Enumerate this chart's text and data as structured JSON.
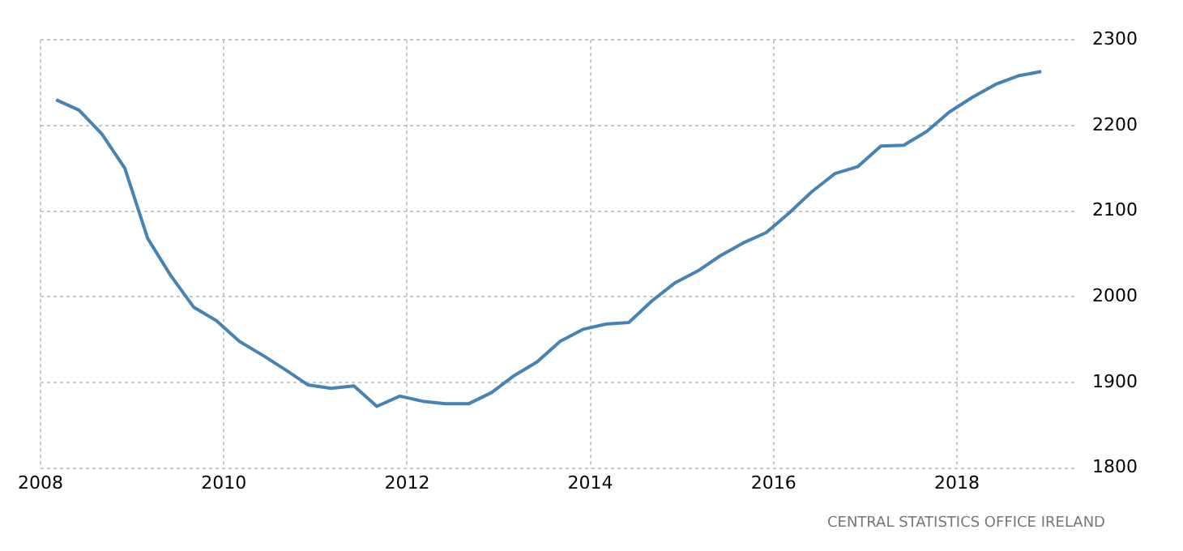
{
  "chart_data": {
    "type": "line",
    "x": [
      2008.17,
      2008.42,
      2008.67,
      2008.92,
      2009.17,
      2009.42,
      2009.67,
      2009.92,
      2010.17,
      2010.42,
      2010.67,
      2010.92,
      2011.17,
      2011.42,
      2011.67,
      2011.92,
      2012.17,
      2012.42,
      2012.67,
      2012.92,
      2013.17,
      2013.42,
      2013.67,
      2013.92,
      2014.17,
      2014.42,
      2014.67,
      2014.92,
      2015.17,
      2015.42,
      2015.67,
      2015.92,
      2016.17,
      2016.42,
      2016.67,
      2016.92,
      2017.17,
      2017.42,
      2017.67,
      2017.92,
      2018.17,
      2018.42,
      2018.67,
      2018.92
    ],
    "series": [
      {
        "color": "#4682b4",
        "values": [
          2230,
          2218,
          2190,
          2150,
          2068,
          2025,
          1988,
          1972,
          1948,
          1932,
          1915,
          1897,
          1893,
          1896,
          1872,
          1884,
          1878,
          1875,
          1875,
          1888,
          1908,
          1924,
          1948,
          1962,
          1968,
          1970,
          1995,
          2016,
          2030,
          2048,
          2063,
          2075,
          2098,
          2123,
          2144,
          2152,
          2176,
          2177,
          2193,
          2216,
          2233,
          2248,
          2258,
          2263
        ]
      }
    ],
    "xlim": [
      2008,
      2019.3
    ],
    "xticks": [
      2008,
      2010,
      2012,
      2014,
      2016,
      2018
    ],
    "ylim": [
      1800,
      2300
    ],
    "yticks": [
      1800,
      1900,
      2000,
      2100,
      2200,
      2300
    ],
    "grid": true,
    "legend": false,
    "marker": "none",
    "line_style": "solid",
    "annotations": [
      "CENTRAL STATISTICS OFFICE IRELAND"
    ]
  }
}
